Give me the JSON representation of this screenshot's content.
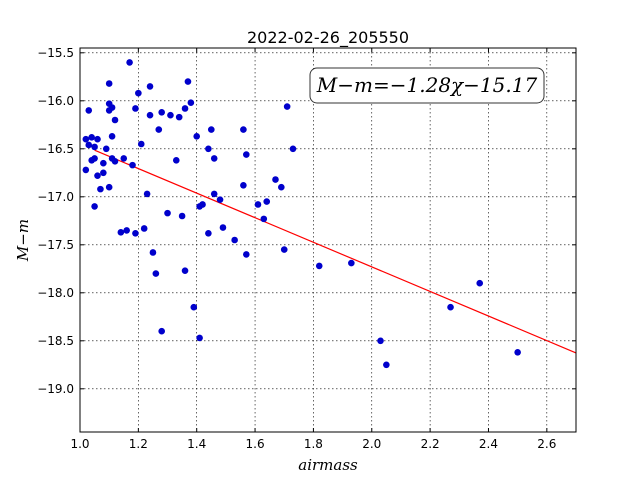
{
  "chart_data": {
    "type": "scatter",
    "title": "2022-02-26_205550",
    "xlabel": "airmass",
    "ylabel": "M−m",
    "xlim": [
      1.0,
      2.7
    ],
    "ylim": [
      -19.45,
      -15.45
    ],
    "xticks": [
      1.0,
      1.2,
      1.4,
      1.6,
      1.8,
      2.0,
      2.2,
      2.4,
      2.6
    ],
    "xtick_labels": [
      "1.0",
      "1.2",
      "1.4",
      "1.6",
      "1.8",
      "2.0",
      "2.2",
      "2.4",
      "2.6"
    ],
    "yticks": [
      -15.5,
      -16.0,
      -16.5,
      -17.0,
      -17.5,
      -18.0,
      -18.5,
      -19.0
    ],
    "ytick_labels": [
      "−15.5",
      "−16.0",
      "−16.5",
      "−17.0",
      "−17.5",
      "−18.0",
      "−18.5",
      "−19.0"
    ],
    "grid": true,
    "annotation": "M−m=−1.28χ−15.17",
    "fit": {
      "slope": -1.28,
      "intercept": -15.17,
      "x_range": [
        1.05,
        2.7
      ]
    },
    "points_color": "#0000cc",
    "fit_color": "#ff0000",
    "points": [
      [
        1.03,
        -16.1
      ],
      [
        1.02,
        -16.4
      ],
      [
        1.04,
        -16.38
      ],
      [
        1.06,
        -16.4
      ],
      [
        1.03,
        -16.46
      ],
      [
        1.05,
        -16.48
      ],
      [
        1.05,
        -16.6
      ],
      [
        1.04,
        -16.62
      ],
      [
        1.02,
        -16.72
      ],
      [
        1.06,
        -16.78
      ],
      [
        1.07,
        -16.92
      ],
      [
        1.05,
        -17.1
      ],
      [
        1.08,
        -16.65
      ],
      [
        1.09,
        -16.5
      ],
      [
        1.08,
        -16.75
      ],
      [
        1.1,
        -16.9
      ],
      [
        1.1,
        -16.03
      ],
      [
        1.11,
        -16.07
      ],
      [
        1.1,
        -16.1
      ],
      [
        1.12,
        -16.2
      ],
      [
        1.1,
        -15.82
      ],
      [
        1.11,
        -16.37
      ],
      [
        1.11,
        -16.6
      ],
      [
        1.12,
        -16.63
      ],
      [
        1.15,
        -16.6
      ],
      [
        1.14,
        -17.37
      ],
      [
        1.16,
        -17.35
      ],
      [
        1.17,
        -15.6
      ],
      [
        1.18,
        -16.67
      ],
      [
        1.19,
        -16.08
      ],
      [
        1.2,
        -15.92
      ],
      [
        1.19,
        -17.38
      ],
      [
        1.21,
        -16.45
      ],
      [
        1.22,
        -17.33
      ],
      [
        1.23,
        -16.97
      ],
      [
        1.24,
        -16.15
      ],
      [
        1.24,
        -15.85
      ],
      [
        1.25,
        -17.58
      ],
      [
        1.26,
        -17.8
      ],
      [
        1.27,
        -16.3
      ],
      [
        1.28,
        -16.12
      ],
      [
        1.28,
        -18.4
      ],
      [
        1.3,
        -17.17
      ],
      [
        1.31,
        -16.15
      ],
      [
        1.33,
        -16.62
      ],
      [
        1.34,
        -16.17
      ],
      [
        1.35,
        -17.2
      ],
      [
        1.36,
        -16.08
      ],
      [
        1.36,
        -17.77
      ],
      [
        1.37,
        -15.8
      ],
      [
        1.38,
        -16.02
      ],
      [
        1.39,
        -18.15
      ],
      [
        1.4,
        -16.37
      ],
      [
        1.41,
        -17.1
      ],
      [
        1.41,
        -18.47
      ],
      [
        1.42,
        -17.08
      ],
      [
        1.44,
        -16.5
      ],
      [
        1.45,
        -16.3
      ],
      [
        1.44,
        -17.38
      ],
      [
        1.46,
        -16.6
      ],
      [
        1.46,
        -16.97
      ],
      [
        1.48,
        -17.03
      ],
      [
        1.49,
        -17.32
      ],
      [
        1.53,
        -17.45
      ],
      [
        1.56,
        -16.3
      ],
      [
        1.56,
        -16.88
      ],
      [
        1.57,
        -16.56
      ],
      [
        1.57,
        -17.6
      ],
      [
        1.61,
        -17.08
      ],
      [
        1.63,
        -17.23
      ],
      [
        1.64,
        -17.05
      ],
      [
        1.67,
        -16.82
      ],
      [
        1.69,
        -16.9
      ],
      [
        1.7,
        -17.55
      ],
      [
        1.71,
        -16.06
      ],
      [
        1.73,
        -16.5
      ],
      [
        1.82,
        -17.72
      ],
      [
        1.93,
        -17.69
      ],
      [
        2.03,
        -18.5
      ],
      [
        2.05,
        -18.75
      ],
      [
        2.27,
        -18.15
      ],
      [
        2.37,
        -17.9
      ],
      [
        2.5,
        -18.62
      ]
    ]
  }
}
